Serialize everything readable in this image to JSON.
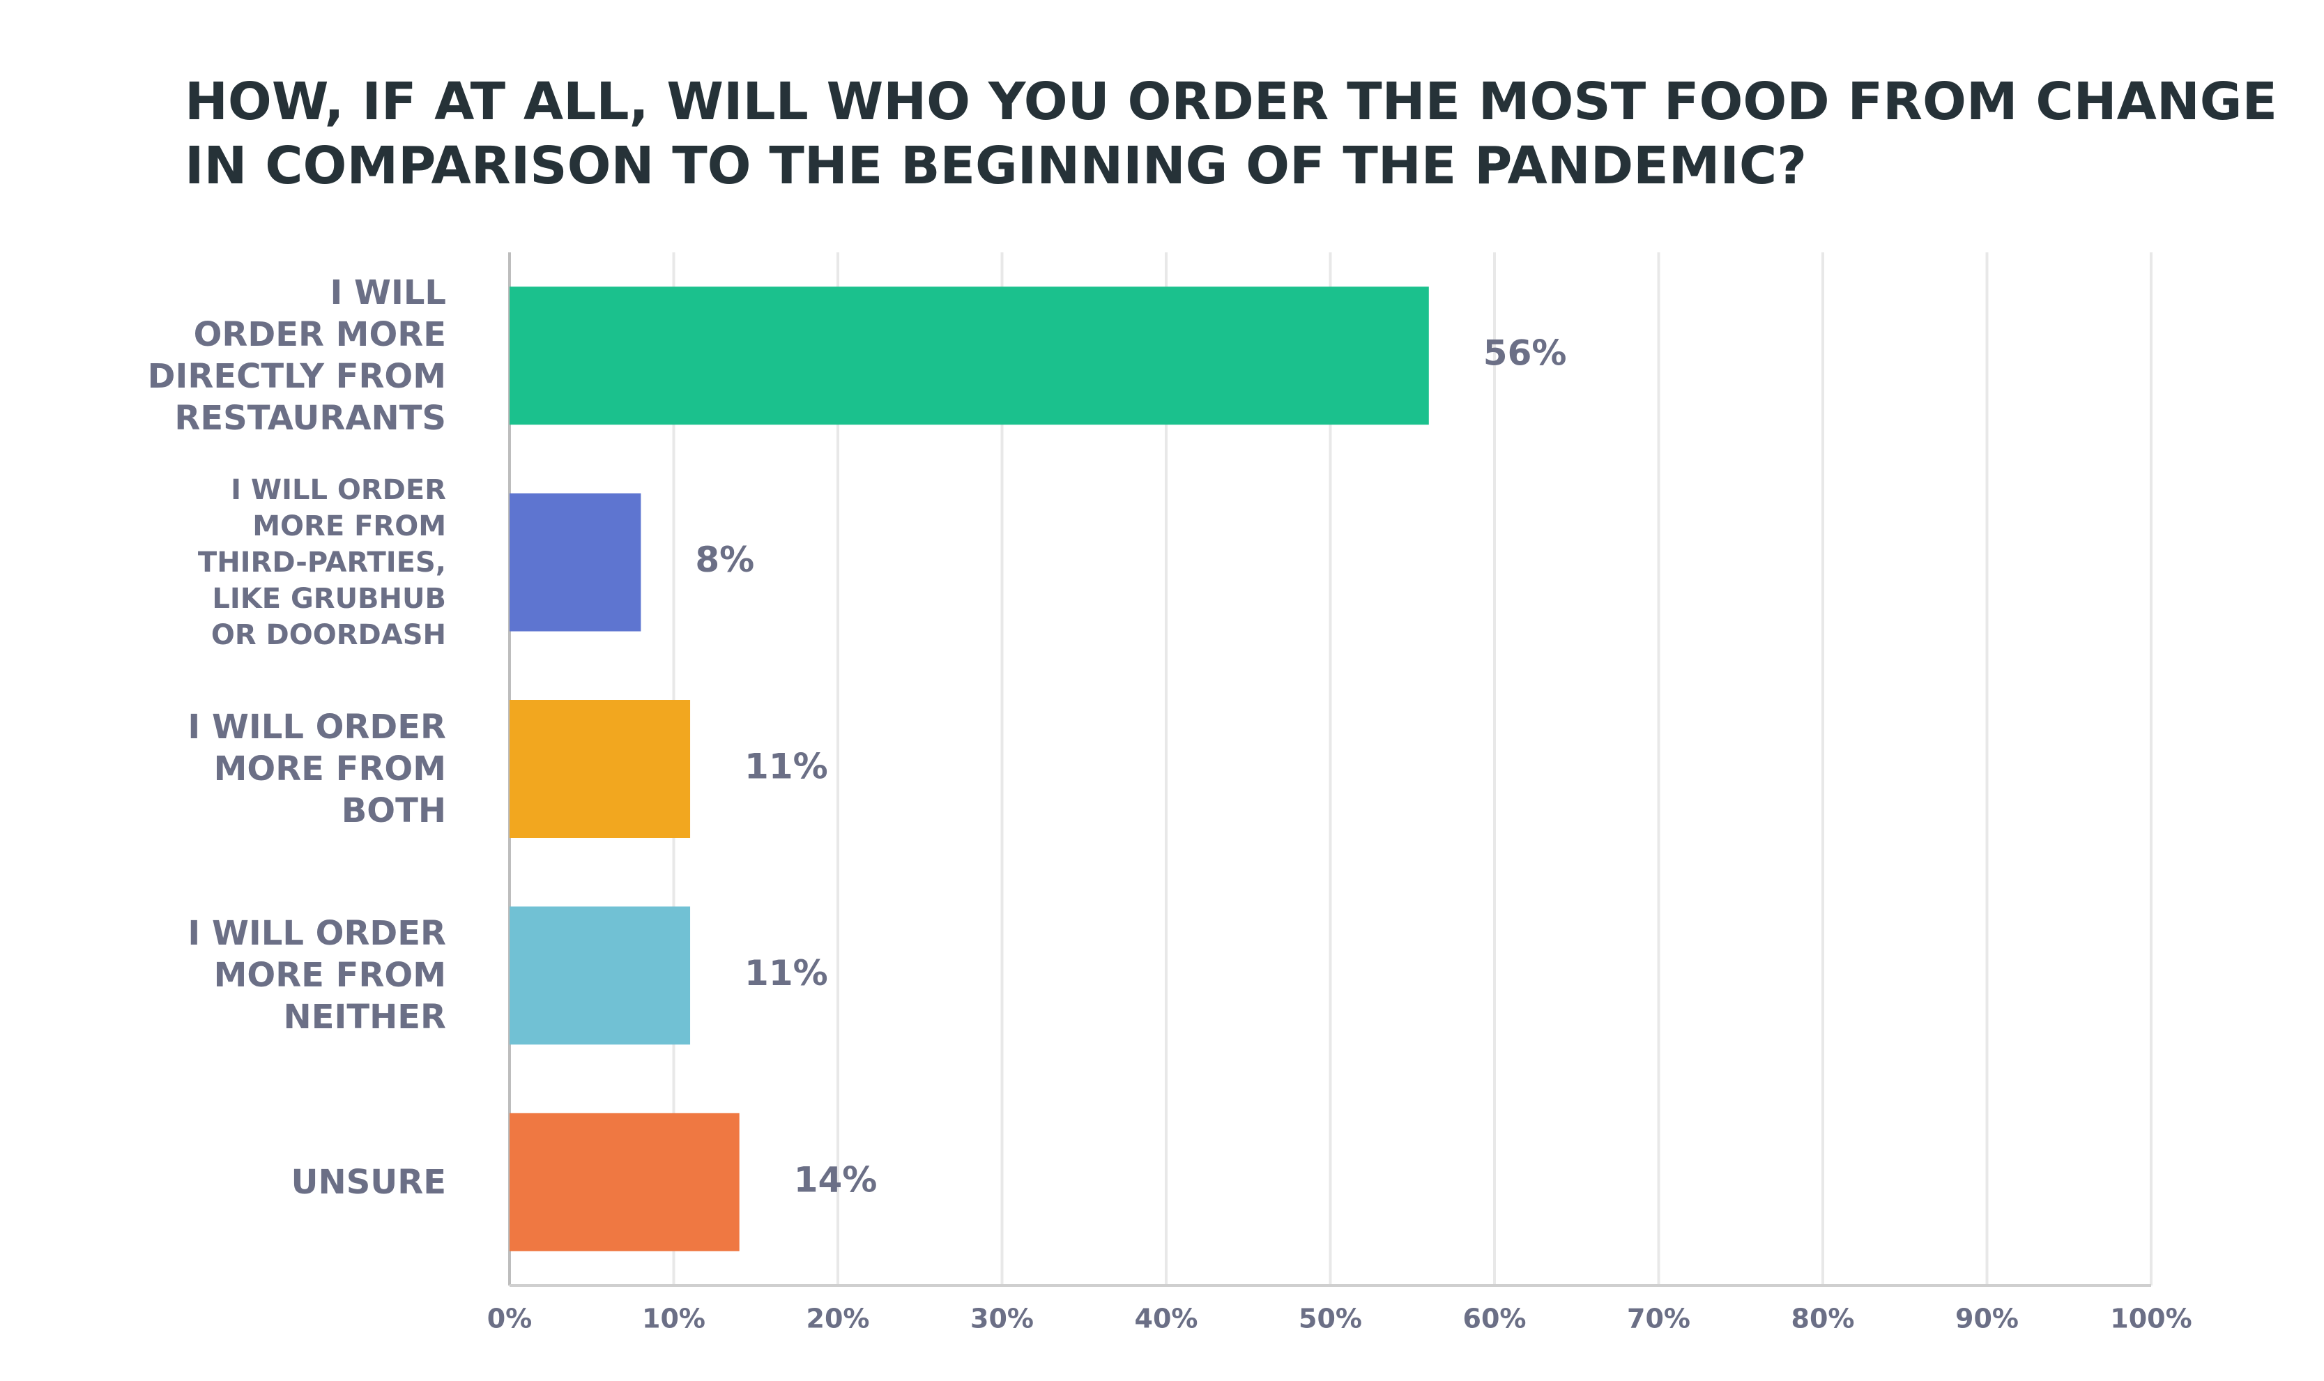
{
  "chart_data": {
    "type": "bar",
    "orientation": "horizontal",
    "title": "HOW, IF AT ALL, WILL WHO YOU ORDER THE MOST FOOD FROM CHANGE\nIN COMPARISON TO THE BEGINNING OF THE PANDEMIC?",
    "categories": [
      "I WILL\nORDER MORE\nDIRECTLY FROM\nRESTAURANTS",
      "I WILL ORDER\nMORE FROM\nTHIRD-PARTIES,\nLIKE GRUBHUB\nOR DOORDASH",
      "I WILL ORDER\nMORE FROM\nBOTH",
      "I WILL ORDER\nMORE FROM\nNEITHER",
      "UNSURE"
    ],
    "values": [
      56,
      8,
      11,
      11,
      14
    ],
    "value_labels": [
      "56%",
      "8%",
      "11%",
      "11%",
      "14%"
    ],
    "colors": [
      "#1bc18d",
      "#5e75d0",
      "#f2a71f",
      "#71c1d4",
      "#ef7842"
    ],
    "xlim": [
      0,
      100
    ],
    "xticks": [
      {
        "value": 0,
        "label": "0%"
      },
      {
        "value": 10,
        "label": "10%"
      },
      {
        "value": 20,
        "label": "20%"
      },
      {
        "value": 30,
        "label": "30%"
      },
      {
        "value": 40,
        "label": "40%"
      },
      {
        "value": 50,
        "label": "50%"
      },
      {
        "value": 60,
        "label": "60%"
      },
      {
        "value": 70,
        "label": "70%"
      },
      {
        "value": 80,
        "label": "80%"
      },
      {
        "value": 90,
        "label": "90%"
      },
      {
        "value": 100,
        "label": "100%"
      }
    ],
    "grid": true
  }
}
